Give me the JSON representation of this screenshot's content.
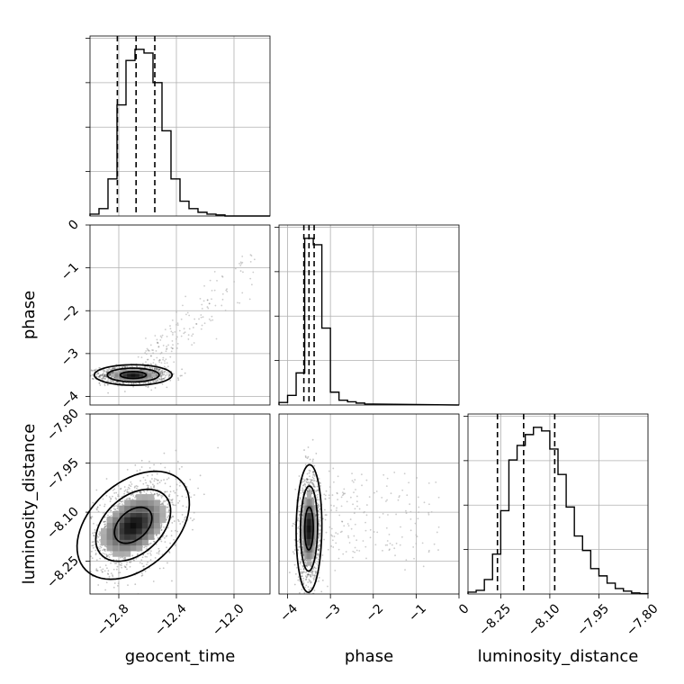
{
  "chart_data": {
    "type": "corner",
    "parameters": [
      {
        "name": "geocent_time",
        "label": "geocent_time",
        "lim": [
          -13.0,
          -11.75
        ],
        "ticks": [
          -12.8,
          -12.4,
          -12.0
        ],
        "tick_labels": [
          "−12.8",
          "−12.4",
          "−12.0"
        ],
        "quantiles": [
          -12.81,
          -12.68,
          -12.55
        ],
        "hist_bin_edges": [
          -13.0,
          -12.9375,
          -12.875,
          -12.8125,
          -12.75,
          -12.6875,
          -12.625,
          -12.5625,
          -12.5,
          -12.4375,
          -12.375,
          -12.3125,
          -12.25,
          -12.1875,
          -12.125,
          -12.0625,
          -12.0
        ],
        "hist_counts": [
          0.5,
          2,
          10,
          30,
          42,
          45,
          44,
          36,
          23,
          10,
          4,
          2,
          1,
          0.5,
          0.3,
          0
        ]
      },
      {
        "name": "phase",
        "label": "phase",
        "lim": [
          -4.2,
          0.0
        ],
        "ticks": [
          -4,
          -3,
          -2,
          -1,
          0
        ],
        "tick_labels": [
          "−4",
          "−3",
          "−2",
          "−1",
          "0"
        ],
        "quantiles": [
          -3.62,
          -3.5,
          -3.38
        ],
        "hist_bin_edges": [
          -4.2,
          -4.0,
          -3.8,
          -3.6,
          -3.4,
          -3.2,
          -3.0,
          -2.8,
          -2.6,
          -2.4,
          -2.2,
          -2.0
        ],
        "hist_counts": [
          0.8,
          3,
          10,
          52,
          50,
          24,
          4,
          1.5,
          1,
          0.6,
          0.3
        ]
      },
      {
        "name": "luminosity_distance",
        "label": "luminosity_distance",
        "lim": [
          -8.35,
          -7.8
        ],
        "ticks": [
          -8.25,
          -8.1,
          -7.95,
          -7.8
        ],
        "tick_labels": [
          "−8.25",
          "−8.10",
          "−7.95",
          "−7.80"
        ],
        "quantiles": [
          -8.26,
          -8.18,
          -8.085
        ],
        "hist_bin_edges": [
          -8.35,
          -8.325,
          -8.3,
          -8.275,
          -8.25,
          -8.225,
          -8.2,
          -8.175,
          -8.15,
          -8.125,
          -8.1,
          -8.075,
          -8.05,
          -8.025,
          -8.0,
          -7.975,
          -7.95,
          -7.925,
          -7.9,
          -7.875,
          -7.85,
          -7.825,
          -7.8
        ],
        "hist_counts": [
          0.5,
          1,
          4,
          11,
          23,
          37,
          41,
          44,
          46,
          45,
          40,
          33,
          24,
          16,
          12,
          7,
          5,
          3,
          1.5,
          0.8,
          0.3,
          0.1
        ]
      }
    ],
    "y_axis_ticks": {
      "phase": {
        "ticks": [
          0,
          -1,
          -2,
          -3,
          -4
        ],
        "tick_labels": [
          "0",
          "−1",
          "−2",
          "−3",
          "−4"
        ]
      },
      "luminosity_distance": {
        "ticks": [
          -7.8,
          -7.95,
          -8.1,
          -8.25
        ],
        "tick_labels": [
          "−7.80",
          "−7.95",
          "−8.10",
          "−8.25"
        ]
      }
    },
    "pairs": [
      {
        "x": "geocent_time",
        "y": "phase",
        "center": [
          -12.7,
          -3.5
        ],
        "sd": [
          0.09,
          0.08
        ],
        "rho": 0.0,
        "contour_levels_sigma": [
          1,
          2,
          3
        ],
        "tail": {
          "x_range": [
            -12.6,
            -11.85
          ],
          "y_range": [
            -3.3,
            -0.8
          ]
        }
      },
      {
        "x": "geocent_time",
        "y": "luminosity_distance",
        "center": [
          -12.7,
          -8.14
        ],
        "sd": [
          0.13,
          0.055
        ],
        "rho": 0.4,
        "contour_levels_sigma": [
          1,
          2,
          3
        ]
      },
      {
        "x": "phase",
        "y": "luminosity_distance",
        "center": [
          -3.5,
          -8.15
        ],
        "sd": [
          0.1,
          0.065
        ],
        "rho": 0.05,
        "contour_levels_sigma": [
          1,
          2,
          3
        ],
        "tail": {
          "x_range": [
            -3.1,
            -0.4
          ],
          "y_range": [
            -8.25,
            -8.0
          ]
        }
      }
    ],
    "grid": true
  }
}
